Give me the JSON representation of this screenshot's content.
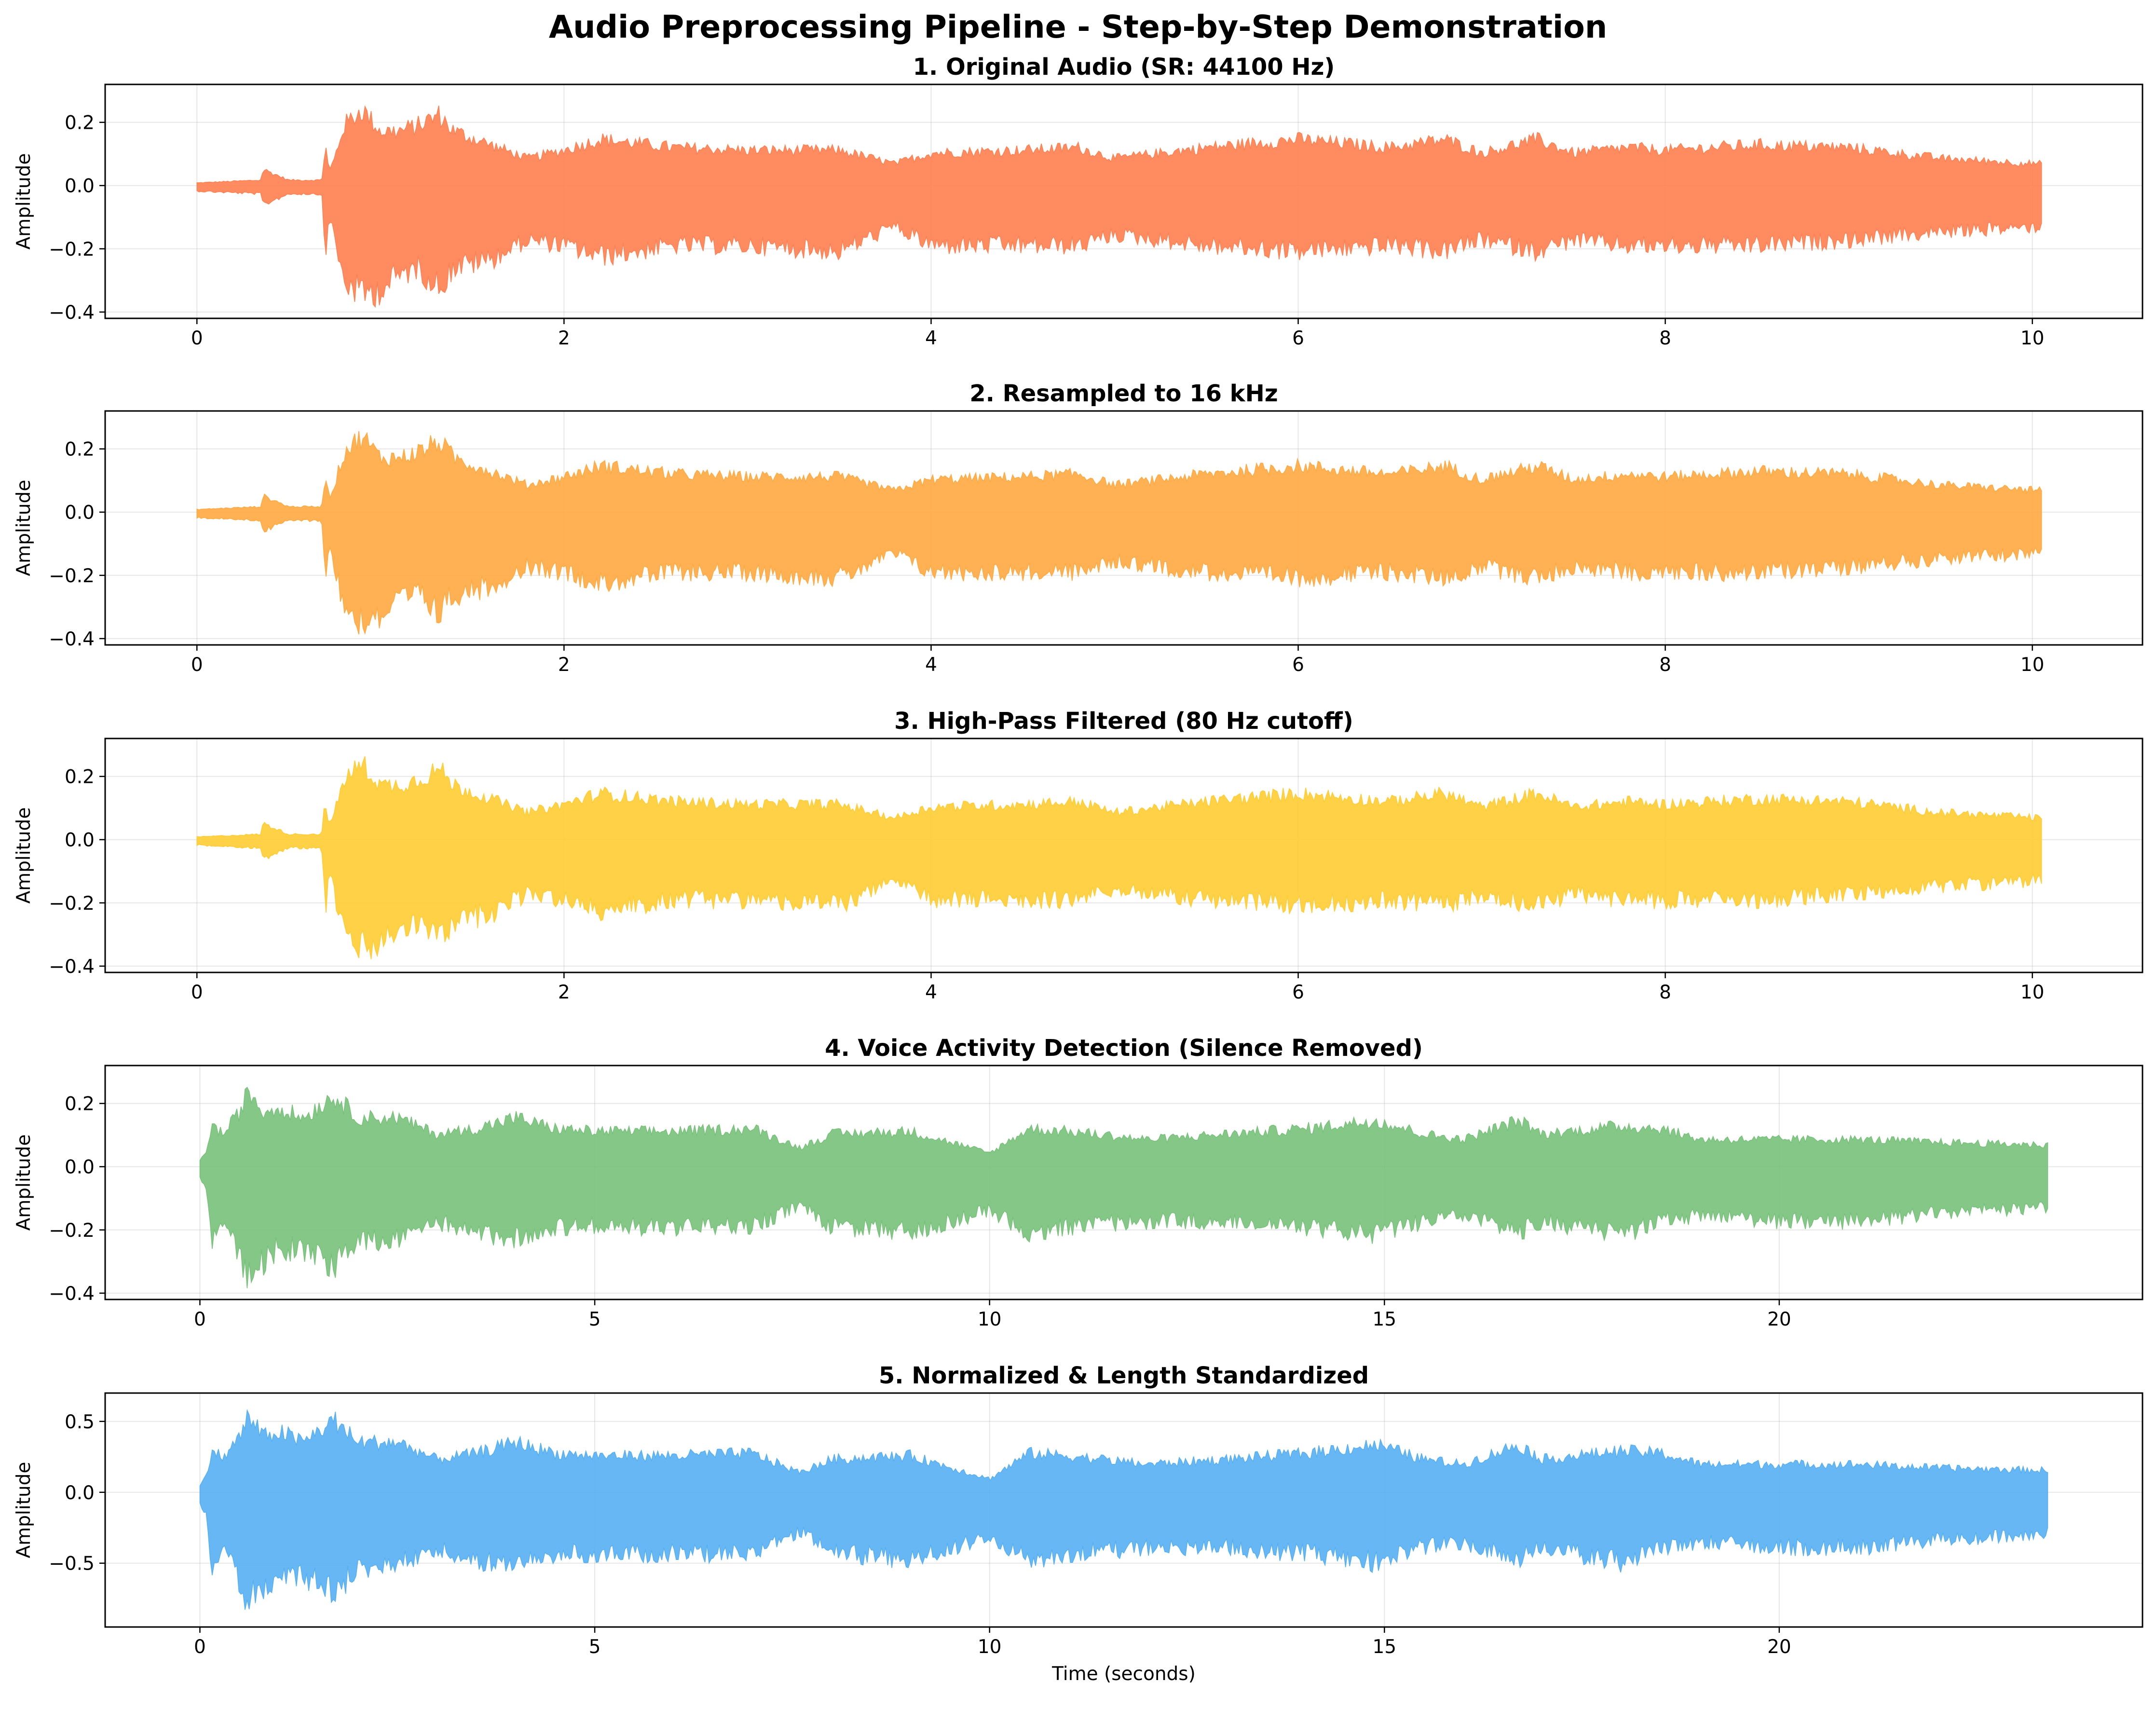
{
  "figure": {
    "title": "Audio Preprocessing Pipeline - Step-by-Step Demonstration"
  },
  "chart_data": [
    {
      "type": "area",
      "title": "1. Original Audio (SR: 44100 Hz)",
      "xlabel": "",
      "ylabel": "Amplitude",
      "xlim": [
        -0.5,
        10.6
      ],
      "ylim": [
        -0.42,
        0.32
      ],
      "xticks": [
        0,
        2,
        4,
        6,
        8,
        10
      ],
      "xtick_labels": [
        "0",
        "2",
        "4",
        "6",
        "8",
        "10"
      ],
      "yticks": [
        -0.4,
        -0.2,
        0.0,
        0.2
      ],
      "ytick_labels": [
        "−0.4",
        "−0.2",
        "0.0",
        "0.2"
      ],
      "grid": true,
      "color": "#FF7F50",
      "series": [
        {
          "x_range": [
            0,
            10.05
          ],
          "envelope": {
            "x": [
              0,
              0.35,
              0.36,
              0.5,
              0.68,
              0.7,
              0.72,
              0.75,
              0.8,
              0.9,
              1.0,
              1.1,
              1.2,
              1.32,
              1.4,
              1.6,
              1.8,
              2.0,
              2.2,
              2.6,
              3.0,
              3.5,
              3.8,
              4.0,
              4.5,
              4.8,
              5.0,
              5.5,
              6.0,
              6.5,
              6.8,
              7.0,
              7.3,
              7.5,
              7.8,
              8.0,
              8.5,
              9.0,
              9.5,
              10.05
            ],
            "upper": [
              0.01,
              0.02,
              0.06,
              0.02,
              0.02,
              0.15,
              0.05,
              0.1,
              0.22,
              0.28,
              0.2,
              0.2,
              0.22,
              0.26,
              0.2,
              0.15,
              0.1,
              0.13,
              0.17,
              0.14,
              0.13,
              0.13,
              0.08,
              0.12,
              0.13,
              0.14,
              0.1,
              0.14,
              0.17,
              0.14,
              0.17,
              0.12,
              0.17,
              0.12,
              0.14,
              0.13,
              0.15,
              0.14,
              0.1,
              0.08
            ],
            "lower": [
              -0.02,
              -0.03,
              -0.07,
              -0.03,
              -0.03,
              -0.27,
              -0.1,
              -0.2,
              -0.35,
              -0.4,
              -0.38,
              -0.33,
              -0.3,
              -0.37,
              -0.3,
              -0.27,
              -0.2,
              -0.22,
              -0.26,
              -0.22,
              -0.22,
              -0.24,
              -0.15,
              -0.22,
              -0.22,
              -0.22,
              -0.18,
              -0.22,
              -0.24,
              -0.22,
              -0.24,
              -0.2,
              -0.24,
              -0.2,
              -0.22,
              -0.22,
              -0.22,
              -0.2,
              -0.17,
              -0.15
            ]
          }
        }
      ]
    },
    {
      "type": "area",
      "title": "2. Resampled to 16 kHz",
      "xlabel": "",
      "ylabel": "Amplitude",
      "xlim": [
        -0.5,
        10.6
      ],
      "ylim": [
        -0.42,
        0.32
      ],
      "xticks": [
        0,
        2,
        4,
        6,
        8,
        10
      ],
      "xtick_labels": [
        "0",
        "2",
        "4",
        "6",
        "8",
        "10"
      ],
      "yticks": [
        -0.4,
        -0.2,
        0.0,
        0.2
      ],
      "ytick_labels": [
        "−0.4",
        "−0.2",
        "0.0",
        "0.2"
      ],
      "grid": true,
      "color": "#FFA940",
      "series": [
        {
          "x_range": [
            0,
            10.05
          ],
          "envelope": {
            "x": [
              0,
              0.35,
              0.36,
              0.5,
              0.68,
              0.7,
              0.72,
              0.75,
              0.8,
              0.9,
              1.0,
              1.1,
              1.2,
              1.32,
              1.4,
              1.6,
              1.8,
              2.0,
              2.2,
              2.6,
              3.0,
              3.5,
              3.8,
              4.0,
              4.5,
              4.8,
              5.0,
              5.5,
              6.0,
              6.5,
              6.8,
              7.0,
              7.3,
              7.5,
              7.8,
              8.0,
              8.5,
              9.0,
              9.5,
              10.05
            ],
            "upper": [
              0.01,
              0.02,
              0.06,
              0.02,
              0.02,
              0.15,
              0.05,
              0.1,
              0.22,
              0.28,
              0.2,
              0.2,
              0.22,
              0.26,
              0.2,
              0.15,
              0.1,
              0.13,
              0.17,
              0.14,
              0.13,
              0.13,
              0.08,
              0.12,
              0.13,
              0.14,
              0.1,
              0.14,
              0.17,
              0.14,
              0.17,
              0.12,
              0.17,
              0.12,
              0.14,
              0.13,
              0.15,
              0.14,
              0.1,
              0.08
            ],
            "lower": [
              -0.02,
              -0.03,
              -0.07,
              -0.03,
              -0.03,
              -0.27,
              -0.1,
              -0.2,
              -0.35,
              -0.4,
              -0.38,
              -0.33,
              -0.3,
              -0.37,
              -0.3,
              -0.27,
              -0.2,
              -0.22,
              -0.26,
              -0.22,
              -0.22,
              -0.24,
              -0.15,
              -0.22,
              -0.22,
              -0.22,
              -0.18,
              -0.22,
              -0.24,
              -0.22,
              -0.24,
              -0.2,
              -0.24,
              -0.2,
              -0.22,
              -0.22,
              -0.22,
              -0.2,
              -0.17,
              -0.15
            ]
          }
        }
      ]
    },
    {
      "type": "area",
      "title": "3. High-Pass Filtered (80 Hz cutoff)",
      "xlabel": "",
      "ylabel": "Amplitude",
      "xlim": [
        -0.5,
        10.6
      ],
      "ylim": [
        -0.42,
        0.32
      ],
      "xticks": [
        0,
        2,
        4,
        6,
        8,
        10
      ],
      "xtick_labels": [
        "0",
        "2",
        "4",
        "6",
        "8",
        "10"
      ],
      "yticks": [
        -0.4,
        -0.2,
        0.0,
        0.2
      ],
      "ytick_labels": [
        "−0.4",
        "−0.2",
        "0.0",
        "0.2"
      ],
      "grid": true,
      "color": "#FFCC33",
      "series": [
        {
          "x_range": [
            0,
            10.05
          ],
          "envelope": {
            "x": [
              0,
              0.35,
              0.36,
              0.5,
              0.68,
              0.7,
              0.72,
              0.75,
              0.8,
              0.9,
              1.0,
              1.1,
              1.2,
              1.32,
              1.4,
              1.6,
              1.8,
              2.0,
              2.2,
              2.6,
              3.0,
              3.5,
              3.8,
              4.0,
              4.5,
              4.8,
              5.0,
              5.5,
              6.0,
              6.5,
              6.8,
              7.0,
              7.3,
              7.5,
              7.8,
              8.0,
              8.5,
              9.0,
              9.5,
              10.05
            ],
            "upper": [
              0.01,
              0.02,
              0.06,
              0.02,
              0.02,
              0.15,
              0.05,
              0.1,
              0.22,
              0.28,
              0.2,
              0.2,
              0.22,
              0.26,
              0.2,
              0.15,
              0.1,
              0.13,
              0.17,
              0.14,
              0.13,
              0.13,
              0.08,
              0.12,
              0.13,
              0.14,
              0.1,
              0.14,
              0.17,
              0.14,
              0.17,
              0.12,
              0.17,
              0.12,
              0.14,
              0.13,
              0.15,
              0.14,
              0.1,
              0.08
            ],
            "lower": [
              -0.02,
              -0.03,
              -0.07,
              -0.03,
              -0.03,
              -0.27,
              -0.1,
              -0.2,
              -0.35,
              -0.4,
              -0.38,
              -0.33,
              -0.3,
              -0.37,
              -0.3,
              -0.27,
              -0.2,
              -0.22,
              -0.26,
              -0.22,
              -0.22,
              -0.24,
              -0.15,
              -0.22,
              -0.22,
              -0.22,
              -0.18,
              -0.22,
              -0.24,
              -0.22,
              -0.24,
              -0.2,
              -0.24,
              -0.2,
              -0.22,
              -0.22,
              -0.22,
              -0.2,
              -0.17,
              -0.15
            ]
          }
        }
      ]
    },
    {
      "type": "area",
      "title": "4. Voice Activity Detection (Silence Removed)",
      "xlabel": "",
      "ylabel": "Amplitude",
      "xlim": [
        -1.2,
        24.6
      ],
      "ylim": [
        -0.42,
        0.32
      ],
      "xticks": [
        0,
        5,
        10,
        15,
        20
      ],
      "xtick_labels": [
        "0",
        "5",
        "10",
        "15",
        "20"
      ],
      "yticks": [
        -0.4,
        -0.2,
        0.0,
        0.2
      ],
      "ytick_labels": [
        "−0.4",
        "−0.2",
        "0.0",
        "0.2"
      ],
      "grid": true,
      "color": "#77C17A",
      "series": [
        {
          "x_range": [
            0,
            23.4
          ],
          "envelope": {
            "x": [
              0,
              0.08,
              0.15,
              0.3,
              0.5,
              0.62,
              0.8,
              1.0,
              1.3,
              1.7,
              2.0,
              2.5,
              3.0,
              3.5,
              4.0,
              4.5,
              5.0,
              6.0,
              7.0,
              7.6,
              8.0,
              9.0,
              10.0,
              10.5,
              11.0,
              12.0,
              13.0,
              14.0,
              14.9,
              15.5,
              16.0,
              16.7,
              17.0,
              18.0,
              18.5,
              19.0,
              20.0,
              21.0,
              22.0,
              23.4
            ],
            "upper": [
              0.02,
              0.06,
              0.15,
              0.12,
              0.2,
              0.28,
              0.2,
              0.22,
              0.18,
              0.26,
              0.18,
              0.18,
              0.12,
              0.14,
              0.18,
              0.14,
              0.13,
              0.13,
              0.14,
              0.07,
              0.12,
              0.13,
              0.05,
              0.14,
              0.13,
              0.1,
              0.12,
              0.14,
              0.17,
              0.12,
              0.1,
              0.17,
              0.12,
              0.15,
              0.14,
              0.1,
              0.1,
              0.1,
              0.09,
              0.08
            ],
            "lower": [
              -0.04,
              -0.08,
              -0.27,
              -0.2,
              -0.33,
              -0.4,
              -0.35,
              -0.3,
              -0.3,
              -0.36,
              -0.28,
              -0.26,
              -0.2,
              -0.25,
              -0.26,
              -0.22,
              -0.22,
              -0.22,
              -0.22,
              -0.14,
              -0.22,
              -0.24,
              -0.16,
              -0.24,
              -0.22,
              -0.2,
              -0.2,
              -0.22,
              -0.25,
              -0.2,
              -0.18,
              -0.24,
              -0.2,
              -0.25,
              -0.2,
              -0.18,
              -0.2,
              -0.2,
              -0.17,
              -0.15
            ]
          }
        }
      ]
    },
    {
      "type": "area",
      "title": "5. Normalized & Length Standardized",
      "xlabel": "Time (seconds)",
      "ylabel": "Amplitude",
      "xlim": [
        -1.2,
        24.6
      ],
      "ylim": [
        -0.95,
        0.7
      ],
      "xticks": [
        0,
        5,
        10,
        15,
        20
      ],
      "xtick_labels": [
        "0",
        "5",
        "10",
        "15",
        "20"
      ],
      "yticks": [
        -0.5,
        0.0,
        0.5
      ],
      "ytick_labels": [
        "−0.5",
        "0.0",
        "0.5"
      ],
      "grid": true,
      "color": "#55AFF2",
      "series": [
        {
          "x_range": [
            0,
            23.4
          ],
          "envelope": {
            "x": [
              0,
              0.08,
              0.15,
              0.3,
              0.5,
              0.62,
              0.8,
              1.0,
              1.3,
              1.7,
              2.0,
              2.5,
              3.0,
              3.5,
              4.0,
              4.5,
              5.0,
              6.0,
              7.0,
              7.6,
              8.0,
              9.0,
              10.0,
              10.5,
              11.0,
              12.0,
              13.0,
              14.0,
              14.9,
              15.5,
              16.0,
              16.7,
              17.0,
              18.0,
              18.5,
              19.0,
              20.0,
              21.0,
              22.0,
              23.4
            ],
            "upper": [
              0.05,
              0.14,
              0.35,
              0.28,
              0.45,
              0.63,
              0.45,
              0.5,
              0.41,
              0.59,
              0.41,
              0.41,
              0.27,
              0.32,
              0.41,
              0.32,
              0.3,
              0.3,
              0.32,
              0.16,
              0.27,
              0.3,
              0.11,
              0.32,
              0.3,
              0.23,
              0.27,
              0.32,
              0.39,
              0.27,
              0.23,
              0.39,
              0.27,
              0.34,
              0.32,
              0.23,
              0.23,
              0.23,
              0.2,
              0.18
            ],
            "lower": [
              -0.09,
              -0.18,
              -0.61,
              -0.45,
              -0.75,
              -0.88,
              -0.79,
              -0.68,
              -0.68,
              -0.82,
              -0.63,
              -0.59,
              -0.45,
              -0.57,
              -0.59,
              -0.5,
              -0.5,
              -0.5,
              -0.5,
              -0.32,
              -0.5,
              -0.55,
              -0.36,
              -0.55,
              -0.5,
              -0.45,
              -0.45,
              -0.5,
              -0.57,
              -0.45,
              -0.41,
              -0.55,
              -0.45,
              -0.57,
              -0.45,
              -0.41,
              -0.45,
              -0.45,
              -0.39,
              -0.34
            ]
          }
        }
      ]
    }
  ]
}
